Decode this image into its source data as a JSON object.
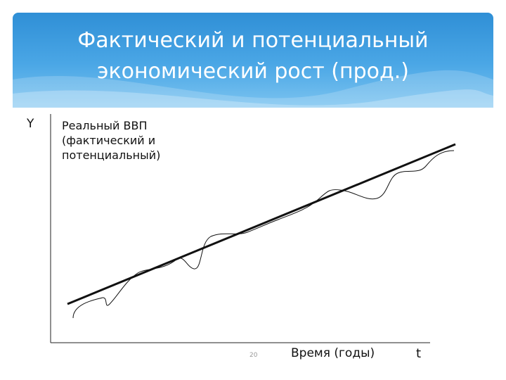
{
  "header": {
    "title_line1": "Фактический и потенциальный",
    "title_line2": "экономический рост (прод.)"
  },
  "diagram": {
    "y_axis_label": "Y",
    "x_axis_label": "Время (годы)",
    "t_label": "t",
    "curve_label_line1": "Реальный ВВП",
    "curve_label_line2": "(фактический и",
    "curve_label_line3": "потенциальный)",
    "page_number": "20"
  },
  "colors": {
    "header_top": "#2f8fd6",
    "header_bottom": "#7cc4f0",
    "line": "#111111"
  }
}
